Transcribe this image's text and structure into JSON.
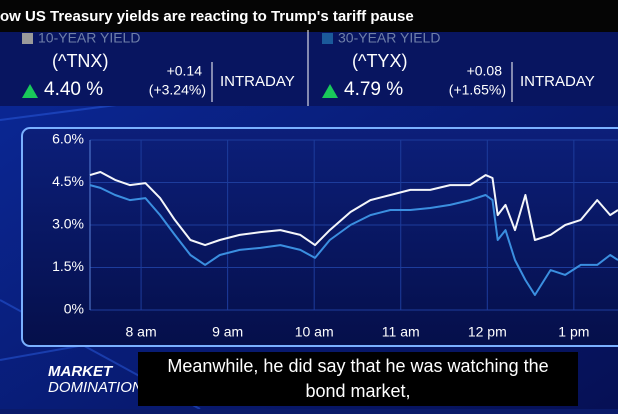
{
  "headline": "ow US Treasury yields are reacting to Trump's tariff pause",
  "quotes": [
    {
      "name": "10-YEAR YIELD",
      "symbol": "(^TNX)",
      "change": "+0.14",
      "change_pct": "(+3.24%)",
      "mode": "INTRADAY",
      "price": "4.40 %"
    },
    {
      "name": "30-YEAR YIELD",
      "symbol": "(^TYX)",
      "change": "+0.08",
      "change_pct": "(+1.65%)",
      "mode": "INTRADAY",
      "price": "4.79 %"
    }
  ],
  "chart_data": {
    "type": "line",
    "x": [
      7.41,
      7.53,
      7.7,
      7.87,
      8.05,
      8.22,
      8.39,
      8.57,
      8.74,
      8.91,
      9.14,
      9.38,
      9.61,
      9.84,
      10.01,
      10.18,
      10.42,
      10.65,
      10.88,
      11.11,
      11.34,
      11.57,
      11.8,
      11.98,
      12.06,
      12.12,
      12.21,
      12.32,
      12.44,
      12.55,
      12.73,
      12.9,
      13.08,
      13.27,
      13.42,
      13.51
    ],
    "series": [
      {
        "name": "10-YEAR YIELD",
        "color": "#f4f6fa",
        "values": [
          4.76,
          4.87,
          4.59,
          4.41,
          4.48,
          3.95,
          3.18,
          2.47,
          2.29,
          2.47,
          2.65,
          2.75,
          2.82,
          2.65,
          2.29,
          2.82,
          3.46,
          3.88,
          4.06,
          4.24,
          4.24,
          4.41,
          4.41,
          4.76,
          4.66,
          3.35,
          3.71,
          2.82,
          4.06,
          2.47,
          2.65,
          3.0,
          3.18,
          3.88,
          3.35,
          3.53
        ]
      },
      {
        "name": "30-YEAR YIELD",
        "color": "#3b8fe0",
        "values": [
          4.41,
          4.31,
          4.06,
          3.88,
          3.95,
          3.35,
          2.65,
          1.94,
          1.59,
          1.94,
          2.12,
          2.19,
          2.29,
          2.12,
          1.84,
          2.47,
          3.0,
          3.35,
          3.53,
          3.53,
          3.6,
          3.71,
          3.88,
          4.06,
          3.88,
          2.47,
          2.82,
          1.76,
          1.06,
          0.53,
          1.41,
          1.24,
          1.59,
          1.59,
          1.94,
          1.76
        ]
      }
    ],
    "xlim": [
      7.41,
      13.51
    ],
    "xticks": [
      {
        "value": 8,
        "label": "8 am"
      },
      {
        "value": 9,
        "label": "9 am"
      },
      {
        "value": 10,
        "label": "10 am"
      },
      {
        "value": 11,
        "label": "11 am"
      },
      {
        "value": 12,
        "label": "12 pm"
      },
      {
        "value": 13,
        "label": "1 pm"
      }
    ],
    "ylim": [
      0,
      6
    ],
    "yticks": [
      {
        "value": 0,
        "label": "0%"
      },
      {
        "value": 1.5,
        "label": "1.5%"
      },
      {
        "value": 3,
        "label": "3.0%"
      },
      {
        "value": 4.5,
        "label": "4.5%"
      },
      {
        "value": 6,
        "label": "6.0%"
      }
    ],
    "grid": true
  },
  "logo": [
    "MARKET",
    "DOMINATION"
  ],
  "captions": [
    "Meanwhile, he did say that he was watching the",
    "bond market,"
  ]
}
